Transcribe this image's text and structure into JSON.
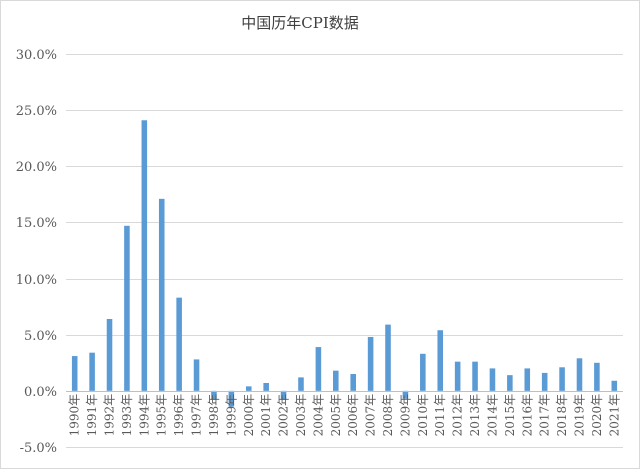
{
  "chart_data": {
    "type": "bar",
    "title": "中国历年CPI数据",
    "xlabel": "",
    "ylabel": "",
    "ylim": [
      -0.05,
      0.3
    ],
    "ytick_values": [
      -0.05,
      0,
      0.05,
      0.1,
      0.15,
      0.2,
      0.25,
      0.3
    ],
    "ytick_labels": [
      "-5.0%",
      "0.0%",
      "5.0%",
      "10.0%",
      "15.0%",
      "20.0%",
      "25.0%",
      "30.0%"
    ],
    "grid": true,
    "legend": "none",
    "bar_color": "#5b9bd5",
    "categories": [
      "1990年",
      "1991年",
      "1992年",
      "1993年",
      "1994年",
      "1995年",
      "1996年",
      "1997年",
      "1998年",
      "1999年",
      "2000年",
      "2001年",
      "2002年",
      "2003年",
      "2004年",
      "2005年",
      "2006年",
      "2007年",
      "2008年",
      "2009年",
      "2010年",
      "2011年",
      "2012年",
      "2013年",
      "2014年",
      "2015年",
      "2016年",
      "2017年",
      "2018年",
      "2019年",
      "2020年",
      "2021年"
    ],
    "values": [
      0.031,
      0.034,
      0.064,
      0.147,
      0.241,
      0.171,
      0.083,
      0.028,
      -0.008,
      -0.014,
      0.004,
      0.007,
      -0.008,
      0.012,
      0.039,
      0.018,
      0.015,
      0.048,
      0.059,
      -0.007,
      0.033,
      0.054,
      0.026,
      0.026,
      0.02,
      0.014,
      0.02,
      0.016,
      0.021,
      0.029,
      0.025,
      0.009
    ]
  }
}
